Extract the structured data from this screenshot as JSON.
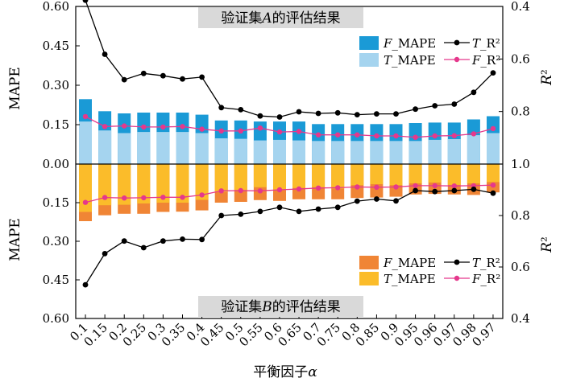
{
  "chart_data": {
    "type": "bar+line",
    "xlabel": "平衡因子α",
    "categories": [
      "0.1",
      "0.15",
      "0.2",
      "0.25",
      "0.3",
      "0.35",
      "0.4",
      "0.45",
      "0.5",
      "0.55",
      "0.6",
      "0.65",
      "0.7",
      "0.75",
      "0.8",
      "0.85",
      "0.9",
      "0.95",
      "0.96",
      "0.97",
      "0.98",
      "0.97"
    ],
    "top": {
      "title": "验证集A的评估结果",
      "ylabel_left": "MAPE",
      "ylabel_right": "R²",
      "left_ylim": [
        0,
        0.6
      ],
      "left_ticks": [
        "0.00",
        "0.15",
        "0.30",
        "0.45",
        "0.60"
      ],
      "right_ylim": [
        1.0,
        0.4
      ],
      "right_ticks": [
        "1.0",
        "0.8",
        "0.6",
        "0.4"
      ],
      "legend": {
        "F_MAPE": "F_MAPE",
        "T_MAPE": "T_MAPE",
        "T_R2": "T_R²",
        "F_R2": "F_R²"
      },
      "series": [
        {
          "name": "F_MAPE",
          "color": "#1a9ad6",
          "values": [
            0.247,
            0.201,
            0.193,
            0.196,
            0.196,
            0.196,
            0.188,
            0.166,
            0.166,
            0.162,
            0.162,
            0.162,
            0.152,
            0.152,
            0.152,
            0.152,
            0.152,
            0.156,
            0.158,
            0.158,
            0.17,
            0.182
          ]
        },
        {
          "name": "T_MAPE",
          "color": "#a5d4ef",
          "values": [
            0.162,
            0.128,
            0.118,
            0.122,
            0.122,
            0.122,
            0.118,
            0.098,
            0.096,
            0.09,
            0.092,
            0.09,
            0.088,
            0.088,
            0.088,
            0.088,
            0.088,
            0.088,
            0.092,
            0.095,
            0.11,
            0.118
          ]
        },
        {
          "name": "T_R2",
          "color": "#000000",
          "values": [
            0.376,
            0.582,
            0.679,
            0.655,
            0.664,
            0.676,
            0.669,
            0.785,
            0.793,
            0.817,
            0.821,
            0.801,
            0.807,
            0.805,
            0.812,
            0.809,
            0.809,
            0.791,
            0.778,
            0.772,
            0.727,
            0.653
          ]
        },
        {
          "name": "F_R2",
          "color": "#e5388c",
          "values": [
            0.819,
            0.857,
            0.855,
            0.859,
            0.859,
            0.857,
            0.867,
            0.874,
            0.874,
            0.863,
            0.878,
            0.876,
            0.889,
            0.889,
            0.889,
            0.893,
            0.893,
            0.898,
            0.893,
            0.892,
            0.885,
            0.865
          ]
        }
      ]
    },
    "bottom": {
      "title": "验证集B的评估结果",
      "ylabel_left": "MAPE",
      "ylabel_right": "R²",
      "left_ylim": [
        0,
        0.6
      ],
      "left_ticks": [
        "0.00",
        "0.15",
        "0.30",
        "0.45",
        "0.60"
      ],
      "right_ylim": [
        1.0,
        0.4
      ],
      "right_ticks": [
        "1.0",
        "0.8",
        "0.6",
        "0.4"
      ],
      "legend": {
        "F_MAPE": "F_MAPE",
        "T_MAPE": "T_MAPE",
        "T_R2": "T_R²",
        "F_R2": "F_R²"
      },
      "series": [
        {
          "name": "F_MAPE",
          "color": "#f08535",
          "values": [
            0.222,
            0.199,
            0.193,
            0.193,
            0.186,
            0.185,
            0.18,
            0.15,
            0.147,
            0.14,
            0.143,
            0.137,
            0.137,
            0.137,
            0.132,
            0.13,
            0.127,
            0.118,
            0.116,
            0.118,
            0.12,
            0.11
          ]
        },
        {
          "name": "T_MAPE",
          "color": "#fbbc2a",
          "values": [
            0.186,
            0.16,
            0.158,
            0.153,
            0.15,
            0.15,
            0.139,
            0.109,
            0.101,
            0.09,
            0.101,
            0.093,
            0.09,
            0.095,
            0.082,
            0.078,
            0.082,
            0.075,
            0.072,
            0.081,
            0.075,
            0.07
          ]
        },
        {
          "name": "T_R2",
          "color": "#000000",
          "values": [
            0.531,
            0.652,
            0.701,
            0.675,
            0.701,
            0.708,
            0.707,
            0.8,
            0.805,
            0.816,
            0.832,
            0.816,
            0.825,
            0.832,
            0.856,
            0.864,
            0.857,
            0.897,
            0.893,
            0.897,
            0.902,
            0.887
          ]
        },
        {
          "name": "F_R2",
          "color": "#e5388c",
          "values": [
            0.851,
            0.87,
            0.868,
            0.869,
            0.871,
            0.871,
            0.88,
            0.896,
            0.897,
            0.896,
            0.9,
            0.903,
            0.907,
            0.908,
            0.911,
            0.91,
            0.911,
            0.916,
            0.916,
            0.915,
            0.916,
            0.918
          ]
        }
      ]
    }
  }
}
